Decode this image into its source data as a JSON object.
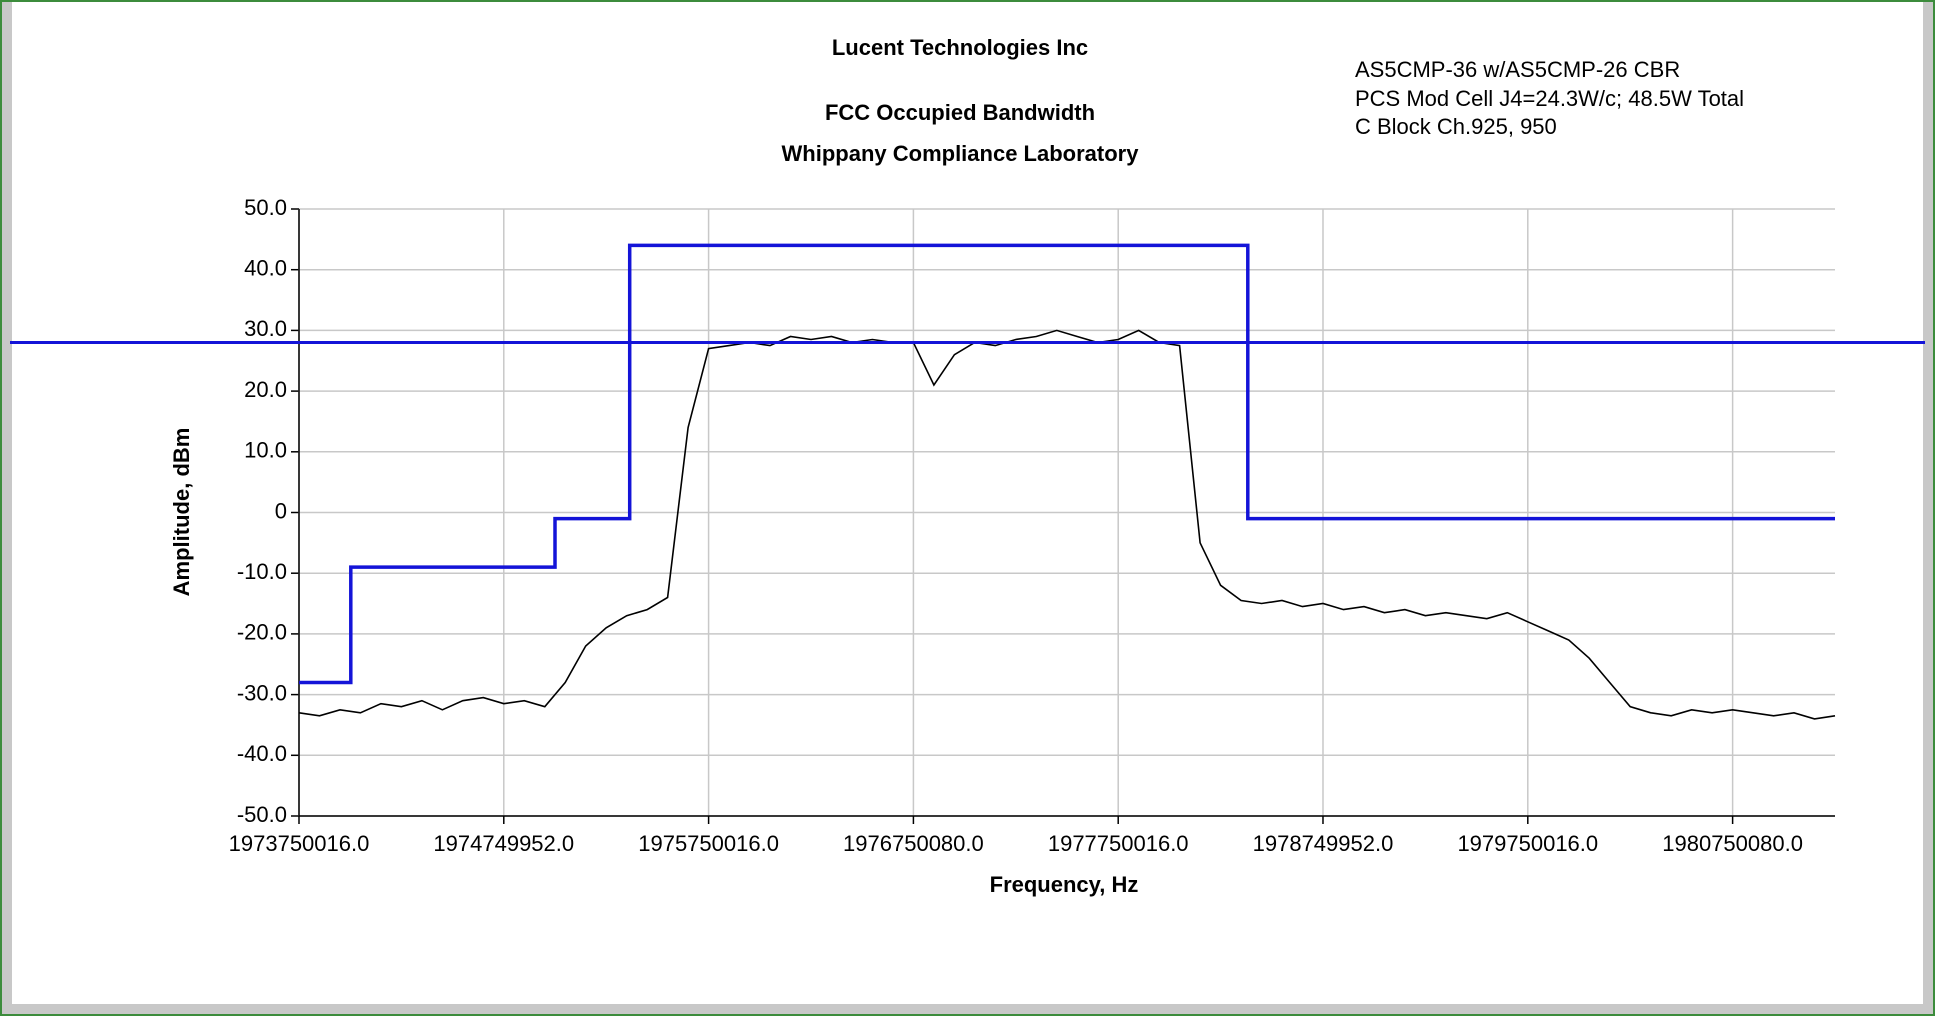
{
  "chart_data": {
    "type": "line",
    "title": "Lucent Technologies Inc",
    "subtitle": [
      "FCC Occupied Bandwidth",
      "Whippany Compliance Laboratory"
    ],
    "annotation": [
      "AS5CMP-36  w/AS5CMP-26 CBR",
      "PCS Mod Cell J4=24.3W/c; 48.5W Total",
      "C Block  Ch.925, 950"
    ],
    "xlabel": "Frequency, Hz",
    "ylabel": "Amplitude, dBm",
    "xlim": [
      1973750016,
      1981250016
    ],
    "ylim": [
      -50,
      50
    ],
    "xticks": [
      {
        "value": 1973750016,
        "label": "1973750016.0"
      },
      {
        "value": 1974749952,
        "label": "1974749952.0"
      },
      {
        "value": 1975750016,
        "label": "1975750016.0"
      },
      {
        "value": 1976750080,
        "label": "1976750080.0"
      },
      {
        "value": 1977750016,
        "label": "1977750016.0"
      },
      {
        "value": 1978749952,
        "label": "1978749952.0"
      },
      {
        "value": 1979750016,
        "label": "1979750016.0"
      },
      {
        "value": 1980750080,
        "label": "1980750080.0"
      }
    ],
    "yticks": [
      {
        "value": 50,
        "label": "50.0"
      },
      {
        "value": 40,
        "label": "40.0"
      },
      {
        "value": 30,
        "label": "30.0"
      },
      {
        "value": 20,
        "label": "20.0"
      },
      {
        "value": 10,
        "label": "10.0"
      },
      0,
      {
        "value": -10,
        "label": "-10.0"
      },
      {
        "value": -20,
        "label": "-20.0"
      },
      {
        "value": -30,
        "label": "-30.0"
      },
      {
        "value": -40,
        "label": "-40.0"
      },
      {
        "value": -50,
        "label": "-50.0"
      }
    ],
    "grid": true,
    "hline": {
      "value": 28,
      "color": "#1414d8"
    },
    "series": [
      {
        "color": "#1414d8",
        "x": [
          1973750016,
          1974003000,
          1974003000,
          1975000000,
          1975000000,
          1975365000,
          1975365000,
          1978383000,
          1978383000,
          1981250016
        ],
        "values": [
          -28,
          -28,
          -9,
          -9,
          -1,
          -1,
          44,
          44,
          -1,
          -1
        ]
      },
      {
        "color": "#000000",
        "x": [
          1973750016,
          1973850016,
          1973950016,
          1974050016,
          1974150016,
          1974250016,
          1974350016,
          1974450016,
          1974550016,
          1974650016,
          1974750016,
          1974850016,
          1974950016,
          1975050016,
          1975150016,
          1975250016,
          1975350016,
          1975450016,
          1975550016,
          1975650016,
          1975750016,
          1975850016,
          1975950016,
          1976050016,
          1976150016,
          1976250016,
          1976350016,
          1976450016,
          1976550016,
          1976650016,
          1976750016,
          1976850016,
          1976950016,
          1977050016,
          1977150016,
          1977250016,
          1977350016,
          1977450016,
          1977550016,
          1977650016,
          1977750016,
          1977850016,
          1977950016,
          1978050016,
          1978150016,
          1978250016,
          1978350016,
          1978450016,
          1978550016,
          1978650016,
          1978750016,
          1978850016,
          1978950016,
          1979050016,
          1979150016,
          1979250016,
          1979350016,
          1979450016,
          1979550016,
          1979650016,
          1979750016,
          1979850016,
          1979950016,
          1980050016,
          1980150016,
          1980250016,
          1980350016,
          1980450016,
          1980550016,
          1980650016,
          1980750016,
          1980850016,
          1980950016,
          1981050016,
          1981150016,
          1981250016
        ],
        "values": [
          -33,
          -33.5,
          -32.5,
          -33,
          -31.5,
          -32,
          -31,
          -32.5,
          -31,
          -30.5,
          -31.5,
          -31,
          -32,
          -28,
          -22,
          -19,
          -17,
          -16,
          -14,
          14,
          27,
          27.5,
          28,
          27.5,
          29,
          28.5,
          29,
          28,
          28.5,
          28,
          28,
          21,
          26,
          28,
          27.5,
          28.5,
          29,
          30,
          29,
          28,
          28.5,
          30,
          28,
          27.5,
          -5,
          -12,
          -14.5,
          -15,
          -14.5,
          -15.5,
          -15,
          -16,
          -15.5,
          -16.5,
          -16,
          -17,
          -16.5,
          -17,
          -17.5,
          -16.5,
          -18,
          -19.5,
          -21,
          -24,
          -28,
          -32,
          -33,
          -33.5,
          -32.5,
          -33,
          -32.5,
          -33,
          -33.5,
          -33,
          -34,
          -33.5
        ]
      }
    ]
  }
}
